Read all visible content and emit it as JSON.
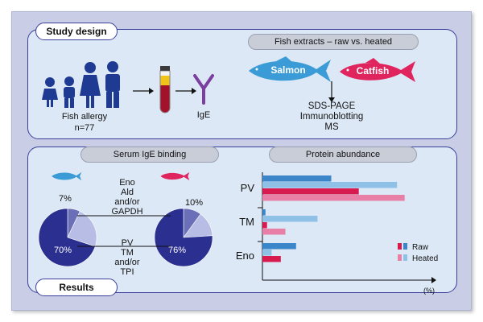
{
  "study_design": {
    "title": "Study design",
    "fish_allergy_label": "Fish allergy",
    "n_label": "n=77",
    "ige_label": "IgE",
    "extracts_title": "Fish extracts – raw vs. heated",
    "salmon_label": "Salmon",
    "catfish_label": "Catfish",
    "methods": [
      "SDS-PAGE",
      "Immunoblotting",
      "MS"
    ]
  },
  "results": {
    "title": "Results",
    "serum_title": "Serum IgE binding",
    "abundance_title": "Protein abundance",
    "pie_labels_top": [
      "Eno",
      "Ald",
      "and/or",
      "GAPDH"
    ],
    "pie_labels_bottom": [
      "PV",
      "TM",
      "and/or",
      "TPI"
    ],
    "salmon_pie": {
      "major_label": "70%",
      "minor_label": "7%",
      "major": 70,
      "minor": 7,
      "mid": 23
    },
    "catfish_pie": {
      "major_label": "76%",
      "minor_label": "10%",
      "major": 76,
      "minor": 10,
      "mid": 14
    }
  },
  "chart_data": {
    "type": "bar",
    "orientation": "horizontal",
    "categories": [
      "PV",
      "TM",
      "Eno"
    ],
    "xlabel": "(%)",
    "series": [
      {
        "name": "Raw",
        "fish": "salmon",
        "color": "#3a86c8",
        "values": [
          45,
          2,
          22
        ]
      },
      {
        "name": "Heated",
        "fish": "salmon",
        "color": "#8fc0e6",
        "values": [
          88,
          36,
          6
        ]
      },
      {
        "name": "Raw",
        "fish": "catfish",
        "color": "#d81b4f",
        "values": [
          63,
          3,
          12
        ]
      },
      {
        "name": "Heated",
        "fish": "catfish",
        "color": "#e77fa6",
        "values": [
          93,
          15,
          0
        ]
      }
    ],
    "legend": [
      {
        "label": "Raw",
        "colors": [
          "#d81b4f",
          "#3a86c8"
        ]
      },
      {
        "label": "Heated",
        "colors": [
          "#e77fa6",
          "#8fc0e6"
        ]
      }
    ],
    "xlim": [
      0,
      100
    ],
    "legend_position": "bottom-right"
  },
  "colors": {
    "salmon_blue": "#3a9bd6",
    "catfish_red": "#e0245e",
    "panel_bg": "#dde8f6",
    "pie_dark": "#2b2f8f",
    "pie_light": "#b8bde6",
    "pie_mid": "#6a6fb8"
  },
  "icons": [
    "children-family-icon",
    "blood-tube-icon",
    "antibody-icon",
    "fish-icon",
    "arrow-icon"
  ]
}
